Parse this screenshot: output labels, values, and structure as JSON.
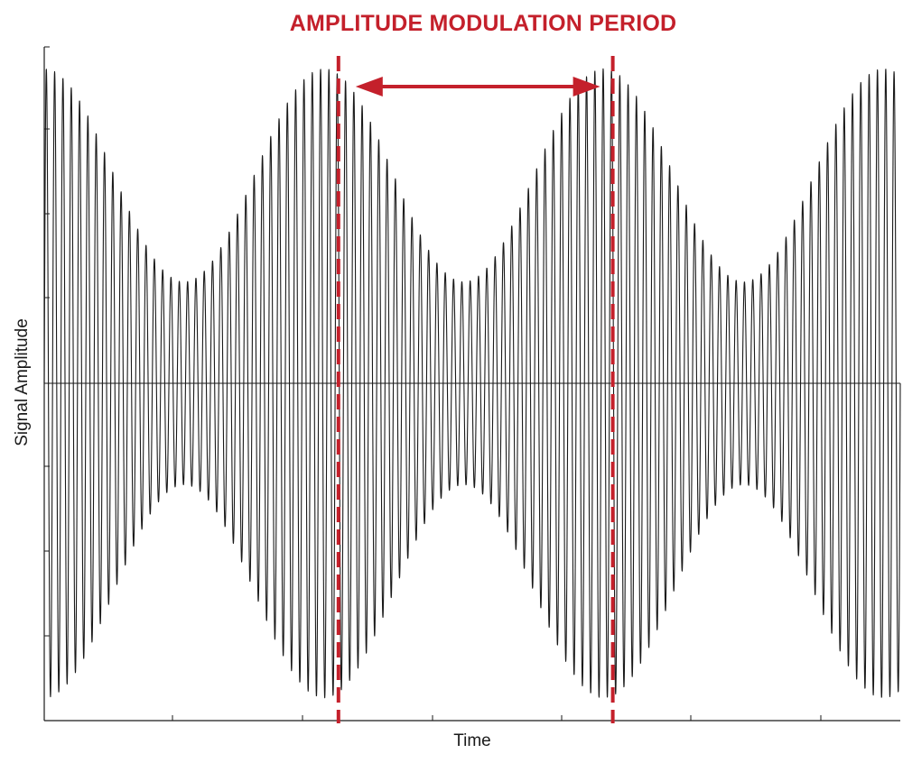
{
  "chart_data": {
    "type": "line",
    "title": "",
    "xlabel": "Time",
    "ylabel": "Signal Amplitude",
    "annotation": {
      "label": "AMPLITUDE MODULATION PERIOD",
      "color": "#c4202b",
      "marker_x": [
        1.0,
        2.0
      ]
    },
    "series": [
      {
        "kind": "amplitude-modulated-sinusoid",
        "color": "#1a1a1a",
        "carrier_cycles": 103,
        "modulation_cycles": 3.06,
        "envelope_max": 0.93,
        "envelope_min": 0.3,
        "x_range": [
          0,
          3.06
        ]
      }
    ],
    "xlim": [
      0,
      3.06
    ],
    "ylim": [
      -1,
      1
    ],
    "grid": false,
    "legend": "none"
  }
}
